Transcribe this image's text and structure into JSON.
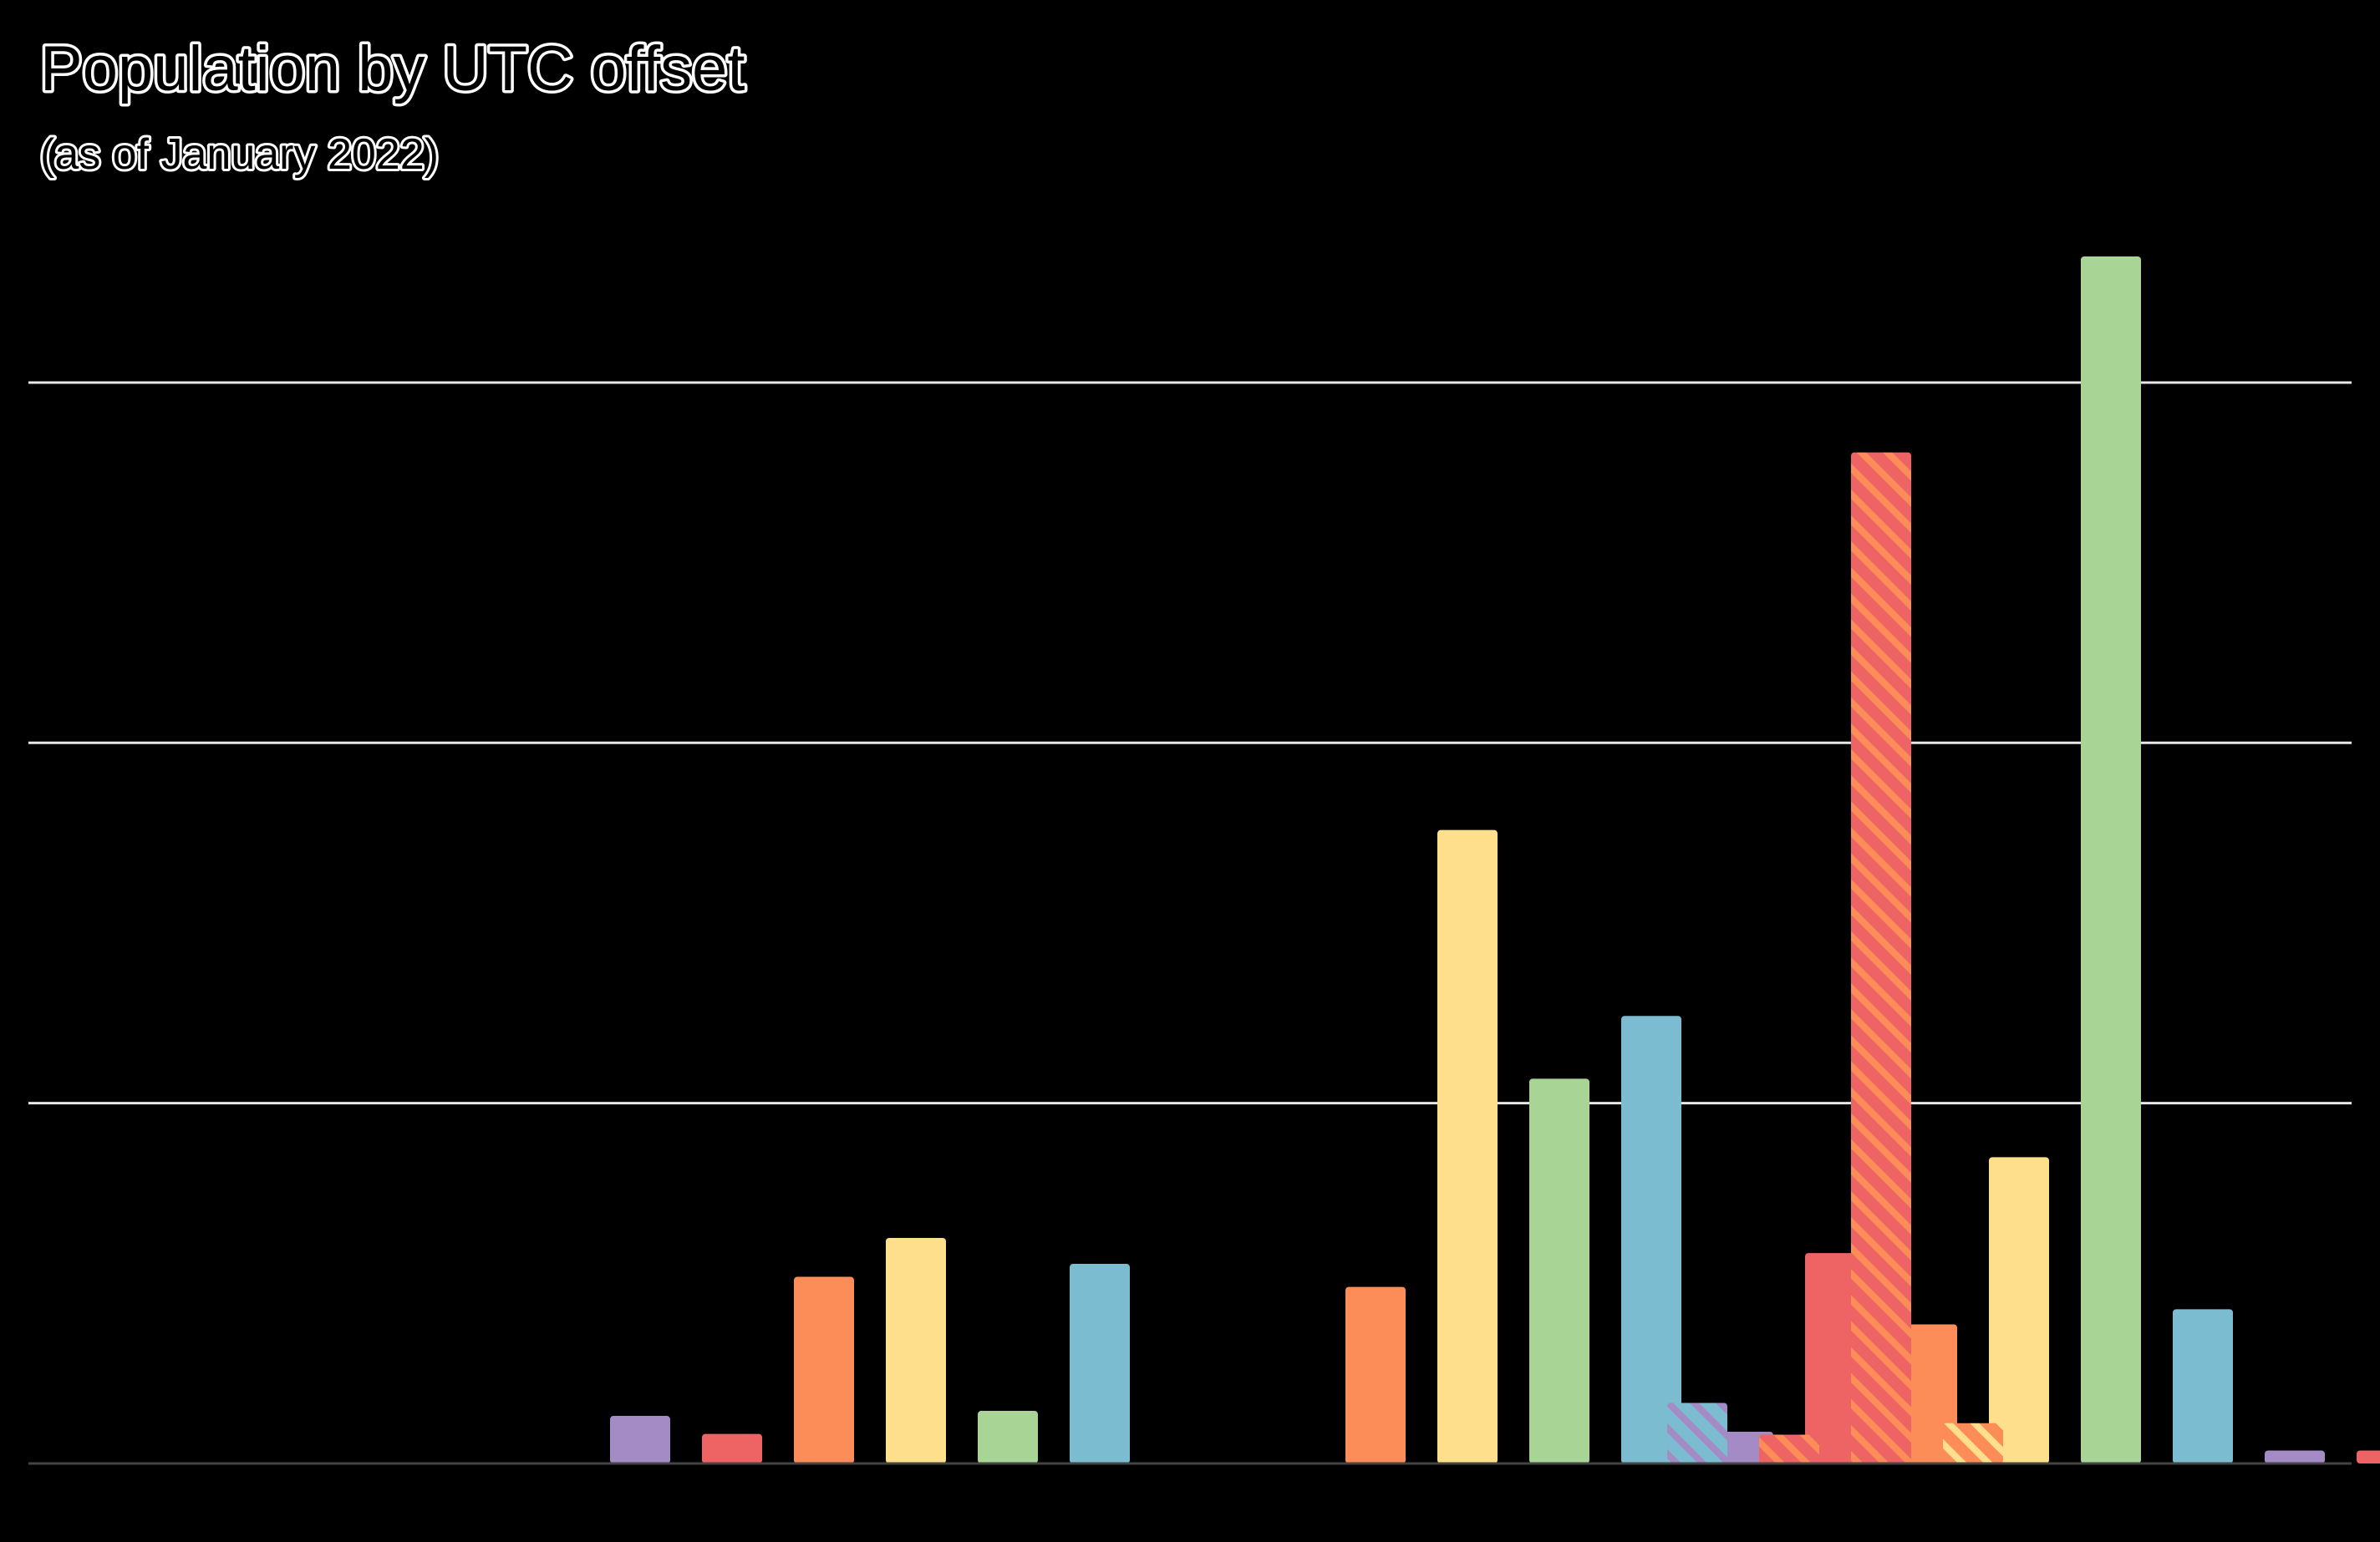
{
  "chart_data": {
    "type": "bar",
    "title": "Population by UTC offset",
    "subtitle": "(as of January 2022)",
    "xlabel": "",
    "ylabel": "",
    "ylim": [
      0,
      1650
    ],
    "grid": true,
    "gridlines": [
      500,
      1000,
      1500
    ],
    "legend": "none",
    "palette": {
      "purple": "#a58bc6",
      "red": "#ee6464",
      "orange": "#fc8d59",
      "yellow": "#fedf8b",
      "green": "#a8d596",
      "blue": "#7cbcd0"
    },
    "background": "#000000",
    "bars": [
      {
        "slot": 0,
        "value": 0,
        "color": "purple"
      },
      {
        "slot": 1,
        "value": 0,
        "color": "red"
      },
      {
        "slot": 2,
        "value": 0,
        "color": "orange"
      },
      {
        "slot": 3,
        "value": 66,
        "color": "purple"
      },
      {
        "slot": 4,
        "value": 41,
        "color": "red"
      },
      {
        "slot": 5,
        "value": 259,
        "color": "orange"
      },
      {
        "slot": 6,
        "value": 313,
        "color": "yellow"
      },
      {
        "slot": 7,
        "value": 73,
        "color": "green"
      },
      {
        "slot": 8,
        "value": 277,
        "color": "blue"
      },
      {
        "slot": 9,
        "value": 0,
        "color": "purple"
      },
      {
        "slot": 10,
        "value": 0,
        "color": "red"
      },
      {
        "slot": 11,
        "value": 245,
        "color": "orange"
      },
      {
        "slot": 12,
        "value": 879,
        "color": "yellow"
      },
      {
        "slot": 13,
        "value": 534,
        "color": "green"
      },
      {
        "slot": 14,
        "value": 621,
        "color": "blue"
      },
      {
        "slot": 14.5,
        "value": 84,
        "color": "blue",
        "hatched": true
      },
      {
        "slot": 15,
        "value": 44,
        "color": "purple"
      },
      {
        "slot": 15.5,
        "value": 40,
        "color": "red",
        "hatched": true
      },
      {
        "slot": 16,
        "value": 292,
        "color": "red"
      },
      {
        "slot": 16.5,
        "value": 1403,
        "color": "red",
        "hatched": true
      },
      {
        "slot": 17,
        "value": 193,
        "color": "orange"
      },
      {
        "slot": 17.5,
        "value": 56,
        "color": "orange",
        "hatched": true
      },
      {
        "slot": 18,
        "value": 425,
        "color": "yellow"
      },
      {
        "slot": 19,
        "value": 1675,
        "color": "green"
      },
      {
        "slot": 20,
        "value": 214,
        "color": "blue"
      },
      {
        "slot": 21,
        "value": 18,
        "color": "purple"
      },
      {
        "slot": 22,
        "value": 18,
        "color": "red"
      }
    ]
  }
}
